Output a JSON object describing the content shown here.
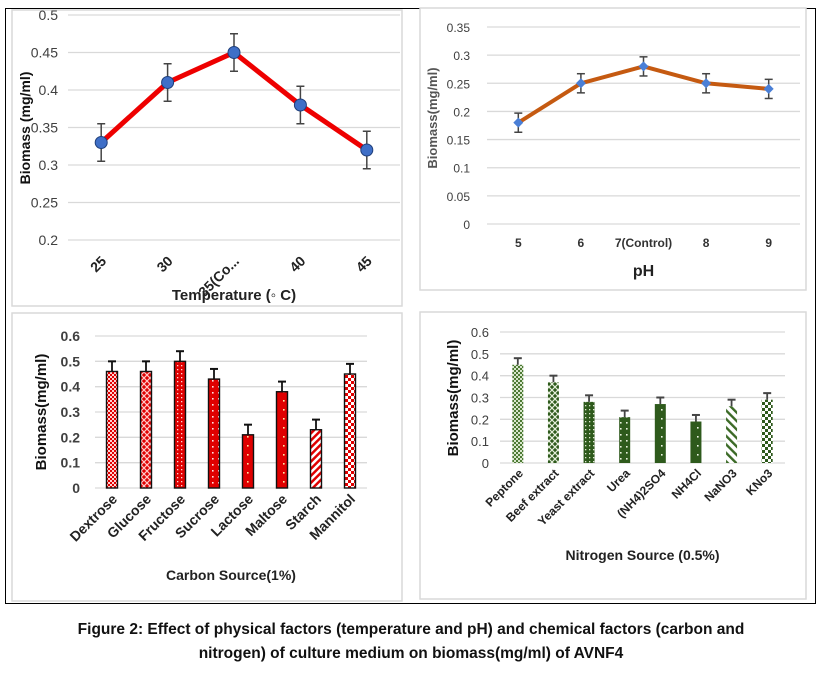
{
  "caption": {
    "line1": "Figure 2: Effect of physical factors (temperature and pH) and chemical factors (carbon and",
    "line2": "nitrogen) of culture medium on biomass(mg/ml) of AVNF4"
  },
  "colors": {
    "temperature_line": "#ee0000",
    "temperature_marker": "#3f6fc7",
    "ph_line": "#c55a11",
    "ph_marker": "#4a7fd6",
    "carbon_bar": "#e00000",
    "nitrogen_bar": "#2e5a1c",
    "gridline": "#d9d9d9",
    "error_bar": "#444444"
  },
  "chart_data": [
    {
      "id": "temperature",
      "type": "line",
      "title": "",
      "xlabel": "Temperature (◦ C)",
      "ylabel": "Biomass (mg/ml)",
      "categories": [
        "25",
        "30",
        "35(Co...",
        "40",
        "45"
      ],
      "values": [
        0.33,
        0.41,
        0.45,
        0.38,
        0.32
      ],
      "errors": [
        0.025,
        0.025,
        0.025,
        0.025,
        0.025
      ],
      "ylim": [
        0.2,
        0.5
      ],
      "yticks": [
        "0.2",
        "0.25",
        "0.3",
        "0.35",
        "0.4",
        "0.45",
        "0.5"
      ],
      "grid": true,
      "legend": "none"
    },
    {
      "id": "ph",
      "type": "line",
      "title": "",
      "xlabel": "pH",
      "ylabel": "Biomass(mg/ml)",
      "categories": [
        "5",
        "6",
        "7(Control)",
        "8",
        "9"
      ],
      "values": [
        0.18,
        0.25,
        0.28,
        0.25,
        0.24
      ],
      "errors": [
        0.017,
        0.017,
        0.017,
        0.017,
        0.017
      ],
      "ylim": [
        0,
        0.35
      ],
      "yticks": [
        "0",
        "0.05",
        "0.1",
        "0.15",
        "0.2",
        "0.25",
        "0.3",
        "0.35"
      ],
      "grid": true,
      "legend": "none"
    },
    {
      "id": "carbon",
      "type": "bar",
      "title": "",
      "xlabel": "Carbon Source(1%)",
      "ylabel": "Biomass(mg/ml)",
      "categories": [
        "Dextrose",
        "Glucose",
        "Fructose",
        "Sucrose",
        "Lactose",
        "Maltose",
        "Starch",
        "Mannitol"
      ],
      "values": [
        0.46,
        0.46,
        0.5,
        0.43,
        0.21,
        0.38,
        0.23,
        0.45
      ],
      "errors": [
        0.04,
        0.04,
        0.04,
        0.04,
        0.04,
        0.04,
        0.04,
        0.04
      ],
      "patterns": [
        "fine-check",
        "cross",
        "fine-dots",
        "dots",
        "sparse-dots",
        "sparse-dots",
        "diagonal",
        "check"
      ],
      "ylim": [
        0,
        0.6
      ],
      "yticks": [
        "0",
        "0.1",
        "0.2",
        "0.3",
        "0.4",
        "0.5",
        "0.6"
      ],
      "grid": true,
      "legend": "none"
    },
    {
      "id": "nitrogen",
      "type": "bar",
      "title": "",
      "xlabel": "Nitrogen Source (0.5%)",
      "ylabel": "Biomass(mg/ml)",
      "categories": [
        "Peptone",
        "Beef extract",
        "Yeast extract",
        "Urea",
        "(NH4)2SO4",
        "NH4Cl",
        "NaNO3",
        "KNo3"
      ],
      "values": [
        0.45,
        0.37,
        0.28,
        0.21,
        0.27,
        0.19,
        0.26,
        0.29
      ],
      "errors": [
        0.03,
        0.03,
        0.03,
        0.03,
        0.03,
        0.03,
        0.03,
        0.03
      ],
      "patterns": [
        "fine-check",
        "cross",
        "fine-dots",
        "dots",
        "sparse-dots",
        "sparse-dots",
        "diagonal",
        "check"
      ],
      "ylim": [
        0,
        0.6
      ],
      "yticks": [
        "0",
        "0.1",
        "0.2",
        "0.3",
        "0.4",
        "0.5",
        "0.6"
      ],
      "grid": true,
      "legend": "none"
    }
  ]
}
